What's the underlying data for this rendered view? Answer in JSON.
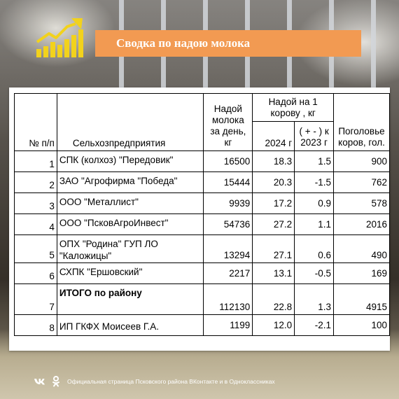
{
  "header": {
    "title": "Сводка по надою молока"
  },
  "table": {
    "headers": {
      "num": "№ п/п",
      "farm": "Сельхозпредприятия",
      "milk_per_day": "Надой молока за день, кг",
      "per_cow_group": "Надой на 1 корову , кг",
      "year_2024": "2024 г",
      "diff_2023": "( + - ) к 2023 г",
      "herd": "Поголовье коров, гол."
    },
    "rows": [
      {
        "num": "1",
        "name": "СПК (колхоз) \"Передовик\"",
        "milk": "16500",
        "per_cow": "18.3",
        "diff": "1.5",
        "herd": "900"
      },
      {
        "num": "2",
        "name": "ЗАО \"Агрофирма \"Победа\"",
        "milk": "15444",
        "per_cow": "20.3",
        "diff": "-1.5",
        "herd": "762"
      },
      {
        "num": "3",
        "name": "ООО \"Металлист\"",
        "milk": "9939",
        "per_cow": "17.2",
        "diff": "0.9",
        "herd": "578"
      },
      {
        "num": "4",
        "name": "ООО \"ПсковАгроИнвест\"",
        "milk": "54736",
        "per_cow": "27.2",
        "diff": "1.1",
        "herd": "2016"
      },
      {
        "num": "5",
        "name": "ОПХ \"Родина\" ГУП ЛО \"Каложицы\"",
        "milk": "13294",
        "per_cow": "27.1",
        "diff": "0.6",
        "herd": "490"
      },
      {
        "num": "6",
        "name": "СХПК \"Ершовский\"",
        "milk": "2217",
        "per_cow": "13.1",
        "diff": "-0.5",
        "herd": "169"
      },
      {
        "num": "7",
        "name": "ИТОГО по району",
        "milk": "112130",
        "per_cow": "22.8",
        "diff": "1.3",
        "herd": "4915"
      },
      {
        "num": "8",
        "name": "ИП ГКФХ Моисеев Г.А.",
        "milk": "1199",
        "per_cow": "12.0",
        "diff": "-2.1",
        "herd": "100"
      }
    ]
  },
  "footer": {
    "text": "Официальная страница Псковского района ВКонтакте и в Одноклассниках",
    "icons": [
      "vk-icon",
      "odnoklassniki-icon"
    ]
  },
  "colors": {
    "banner": "#f29a52",
    "logo": "#f2d21c"
  },
  "icons": {
    "logo": "growth-chart-icon"
  }
}
